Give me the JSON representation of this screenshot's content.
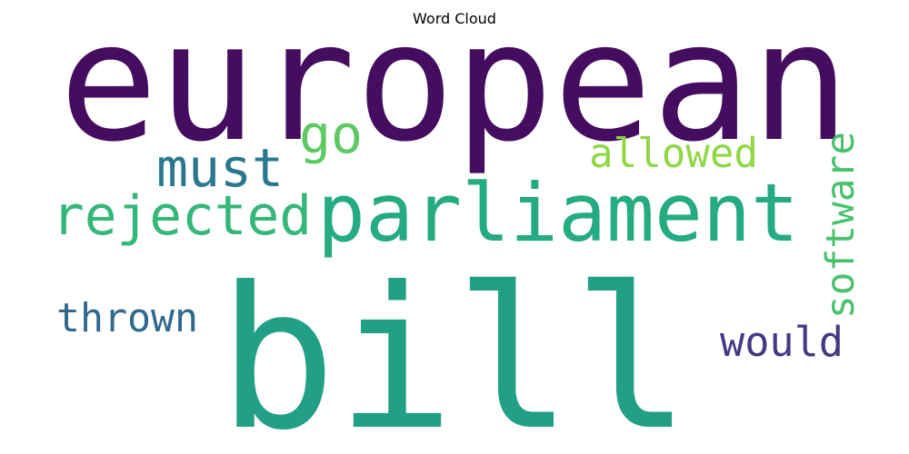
{
  "chart_data": {
    "type": "wordcloud",
    "title": "Word Cloud",
    "background_color": "#ffffff",
    "colormap": "viridis",
    "words": [
      {
        "text": "european",
        "weight": 1.0,
        "color": "#440d5f",
        "orientation": "horizontal"
      },
      {
        "text": "bill",
        "weight": 0.98,
        "color": "#22a085",
        "orientation": "horizontal"
      },
      {
        "text": "parliament",
        "weight": 0.62,
        "color": "#24ab82",
        "orientation": "horizontal"
      },
      {
        "text": "rejected",
        "weight": 0.42,
        "color": "#35b779",
        "orientation": "horizontal"
      },
      {
        "text": "must",
        "weight": 0.4,
        "color": "#2a788e",
        "orientation": "horizontal"
      },
      {
        "text": "go",
        "weight": 0.36,
        "color": "#5ec962",
        "orientation": "horizontal"
      },
      {
        "text": "thrown",
        "weight": 0.34,
        "color": "#31688e",
        "orientation": "horizontal"
      },
      {
        "text": "would",
        "weight": 0.33,
        "color": "#433a83",
        "orientation": "horizontal"
      },
      {
        "text": "allowed",
        "weight": 0.31,
        "color": "#8fd744",
        "orientation": "horizontal"
      },
      {
        "text": "software",
        "weight": 0.31,
        "color": "#4ac16d",
        "orientation": "vertical"
      }
    ]
  }
}
